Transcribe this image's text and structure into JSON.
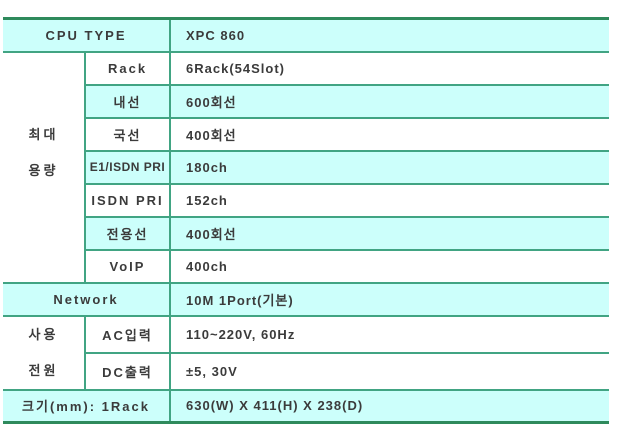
{
  "colors": {
    "outer_border": "#2e8a5c",
    "inner_border": "#41a483",
    "highlight_row": "#ccfffb",
    "text": "#3b3b3b"
  },
  "table": {
    "rows": {
      "cpu": {
        "label": "CPU TYPE",
        "value": "XPC 860"
      },
      "capacity": {
        "line1": "최대",
        "line2": "용량"
      },
      "rack": {
        "label": "Rack",
        "value": "6Rack(54Slot)"
      },
      "naesun": {
        "label": "내선",
        "value": "600회선"
      },
      "guksun": {
        "label": "국선",
        "value": "400회선"
      },
      "e1": {
        "label": "E1/ISDN PRI",
        "value": "180ch"
      },
      "isdn": {
        "label": "ISDN PRI",
        "value": "152ch"
      },
      "leased": {
        "label": "전용선",
        "value": "400회선"
      },
      "voip": {
        "label": "VoIP",
        "value": "400ch"
      },
      "network": {
        "label": "Network",
        "value": "10M 1Port(기본)"
      },
      "power": {
        "line1": "사용",
        "line2": "전원"
      },
      "ac": {
        "label": "AC입력",
        "value": "110~220V, 60Hz"
      },
      "dc": {
        "label": "DC출력",
        "value": "±5, 30V"
      },
      "size": {
        "label": "크기(mm): 1Rack",
        "value": "630(W) X 411(H) X 238(D)"
      }
    }
  }
}
